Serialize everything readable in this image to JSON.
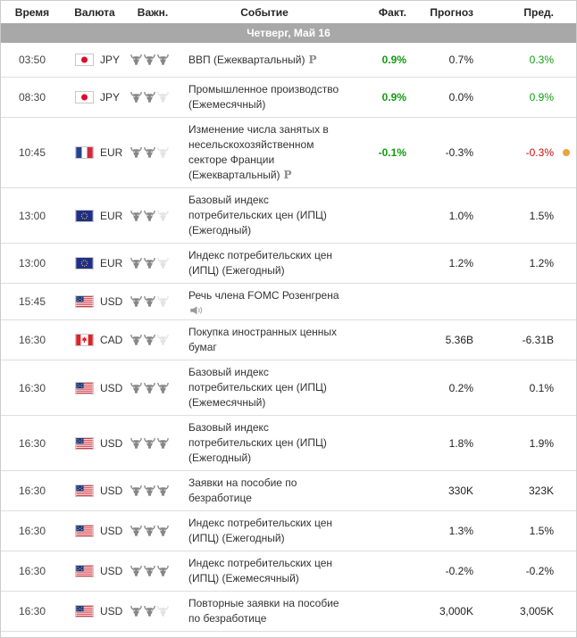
{
  "colors": {
    "positive_green": "#119b11",
    "negative_red": "#cf0c0c",
    "alert_dot_orange": "#e9a43c",
    "date_band_gray": "#a8a8a8"
  },
  "icons": {
    "importance": "bull-icon",
    "speech": "speaker-icon",
    "preliminary_marker": "P",
    "alert": "orange-dot-icon"
  },
  "table": {
    "headers": [
      "Время",
      "Валюта",
      "Важн.",
      "Событие",
      "Факт.",
      "Прогноз",
      "Пред."
    ],
    "date_header": "Четверг, Май 16",
    "rows": [
      {
        "time": "03:50",
        "currency": "JPY",
        "flag": "jp",
        "importance": 3,
        "event": "ВВП (Ежеквартальный)",
        "marker": "P",
        "speech": false,
        "actual": "0.9%",
        "actual_color": "green",
        "forecast": "0.7%",
        "previous": "0.3%",
        "previous_color": "green",
        "alert_dot": false
      },
      {
        "time": "08:30",
        "currency": "JPY",
        "flag": "jp",
        "importance": 2,
        "event": "Промышленное производство (Ежемесячный)",
        "marker": null,
        "speech": false,
        "actual": "0.9%",
        "actual_color": "green",
        "forecast": "0.0%",
        "previous": "0.9%",
        "previous_color": "green",
        "alert_dot": false
      },
      {
        "time": "10:45",
        "currency": "EUR",
        "flag": "fr",
        "importance": 2,
        "event": "Изменение числа занятых в несельскохозяйственном секторе Франции (Ежеквартальный)",
        "marker": "P",
        "speech": false,
        "actual": "-0.1%",
        "actual_color": "green",
        "forecast": "-0.3%",
        "previous": "-0.3%",
        "previous_color": "red",
        "alert_dot": true
      },
      {
        "time": "13:00",
        "currency": "EUR",
        "flag": "eu",
        "importance": 2,
        "event": "Базовый индекс потребительских цен (ИПЦ) (Ежегодный)",
        "marker": null,
        "speech": false,
        "actual": "",
        "actual_color": null,
        "forecast": "1.0%",
        "previous": "1.5%",
        "previous_color": null,
        "alert_dot": false
      },
      {
        "time": "13:00",
        "currency": "EUR",
        "flag": "eu",
        "importance": 2,
        "event": "Индекс потребительских цен (ИПЦ) (Ежегодный)",
        "marker": null,
        "speech": false,
        "actual": "",
        "actual_color": null,
        "forecast": "1.2%",
        "previous": "1.2%",
        "previous_color": null,
        "alert_dot": false
      },
      {
        "time": "15:45",
        "currency": "USD",
        "flag": "us",
        "importance": 2,
        "event": "Речь члена FOMC Розенгрена",
        "marker": null,
        "speech": true,
        "actual": "",
        "actual_color": null,
        "forecast": "",
        "previous": "",
        "previous_color": null,
        "alert_dot": false
      },
      {
        "time": "16:30",
        "currency": "CAD",
        "flag": "ca",
        "importance": 2,
        "event": "Покупка иностранных ценных бумаг",
        "marker": null,
        "speech": false,
        "actual": "",
        "actual_color": null,
        "forecast": "5.36B",
        "previous": "-6.31B",
        "previous_color": null,
        "alert_dot": false
      },
      {
        "time": "16:30",
        "currency": "USD",
        "flag": "us",
        "importance": 3,
        "event": "Базовый индекс потребительских цен (ИПЦ) (Ежемесячный)",
        "marker": null,
        "speech": false,
        "actual": "",
        "actual_color": null,
        "forecast": "0.2%",
        "previous": "0.1%",
        "previous_color": null,
        "alert_dot": false
      },
      {
        "time": "16:30",
        "currency": "USD",
        "flag": "us",
        "importance": 3,
        "event": "Базовый индекс потребительских цен (ИПЦ) (Ежегодный)",
        "marker": null,
        "speech": false,
        "actual": "",
        "actual_color": null,
        "forecast": "1.8%",
        "previous": "1.9%",
        "previous_color": null,
        "alert_dot": false
      },
      {
        "time": "16:30",
        "currency": "USD",
        "flag": "us",
        "importance": 3,
        "event": "Заявки на пособие по безработице",
        "marker": null,
        "speech": false,
        "actual": "",
        "actual_color": null,
        "forecast": "330K",
        "previous": "323K",
        "previous_color": null,
        "alert_dot": false
      },
      {
        "time": "16:30",
        "currency": "USD",
        "flag": "us",
        "importance": 3,
        "event": "Индекс потребительских цен (ИПЦ) (Ежегодный)",
        "marker": null,
        "speech": false,
        "actual": "",
        "actual_color": null,
        "forecast": "1.3%",
        "previous": "1.5%",
        "previous_color": null,
        "alert_dot": false
      },
      {
        "time": "16:30",
        "currency": "USD",
        "flag": "us",
        "importance": 3,
        "event": "Индекс потребительских цен (ИПЦ) (Ежемесячный)",
        "marker": null,
        "speech": false,
        "actual": "",
        "actual_color": null,
        "forecast": "-0.2%",
        "previous": "-0.2%",
        "previous_color": null,
        "alert_dot": false
      },
      {
        "time": "16:30",
        "currency": "USD",
        "flag": "us",
        "importance": 2,
        "event": "Повторные заявки на пособие по безработице",
        "marker": null,
        "speech": false,
        "actual": "",
        "actual_color": null,
        "forecast": "3,000K",
        "previous": "3,005K",
        "previous_color": null,
        "alert_dot": false
      }
    ]
  }
}
